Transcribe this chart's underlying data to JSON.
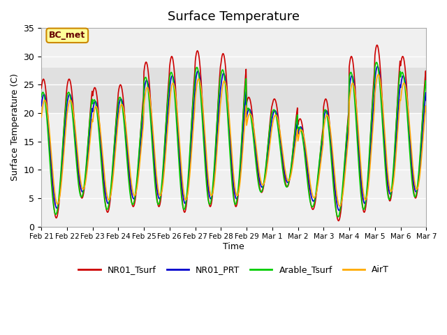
{
  "title": "Surface Temperature",
  "ylabel": "Surface Temperature (C)",
  "xlabel": "Time",
  "ylim": [
    0,
    35
  ],
  "yticks": [
    0,
    5,
    10,
    15,
    20,
    25,
    30,
    35
  ],
  "bg_band_low": 20,
  "bg_band_high": 28,
  "bg_band_color": "#e0e0e0",
  "grid_color": "#ffffff",
  "axes_bg": "#f0f0f0",
  "annotation_text": "BC_met",
  "annotation_bg": "#ffff99",
  "annotation_border": "#cc8800",
  "colors": {
    "NR01_Tsurf": "#cc0000",
    "NR01_PRT": "#0000cc",
    "Arable_Tsurf": "#00cc00",
    "AirT": "#ffaa00"
  },
  "legend_labels": [
    "NR01_Tsurf",
    "NR01_PRT",
    "Arable_Tsurf",
    "AirT"
  ],
  "num_days": 15,
  "points_per_day": 48,
  "date_labels": [
    "Feb 21",
    "Feb 22",
    "Feb 23",
    "Feb 24",
    "Feb 25",
    "Feb 26",
    "Feb 27",
    "Feb 28",
    "Feb 29",
    "Mar 1",
    "Mar 2",
    "Mar 3",
    "Mar 4",
    "Mar 5",
    "Mar 6",
    "Mar 7"
  ],
  "daily_peaks_NR01": [
    26,
    26,
    24.5,
    25,
    29,
    30,
    31,
    30.5,
    22.8,
    22.5,
    19,
    22.5,
    30,
    32,
    30,
    27
  ],
  "daily_mins_NR01": [
    1.5,
    5,
    2.5,
    3.5,
    3.5,
    2.5,
    3.5,
    3.5,
    6,
    7,
    3,
    1,
    2.5,
    4.5,
    5,
    4.5
  ],
  "phase_shift_prt": 0.5,
  "phase_shift_arable": -0.5,
  "phase_shift_airt": 1.2,
  "scale_prt": 0.82,
  "scale_arable": 0.88,
  "scale_airt": 0.75,
  "base_prt": 2.0,
  "base_arable": 0.8,
  "base_airt": 2.8
}
